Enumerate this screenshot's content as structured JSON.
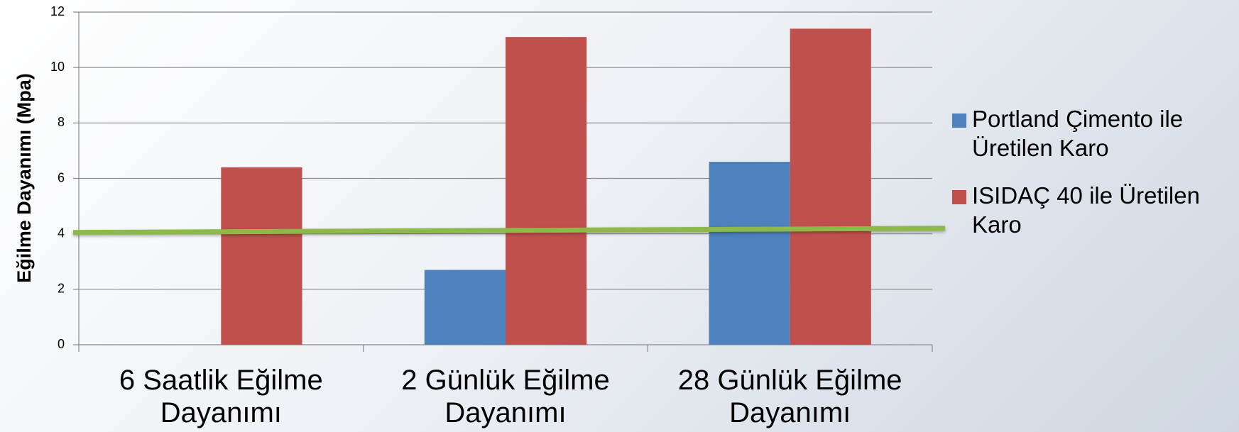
{
  "chart_data": {
    "type": "bar",
    "y_axis_label": "Eğilme Dayanımı (Mpa)",
    "categories": [
      "6 Saatlik Eğilme Dayanımı",
      "2 Günlük Eğilme Dayanımı",
      "28 Günlük Eğilme Dayanımı"
    ],
    "series": [
      {
        "name": "Portland Çimento ile Üretilen Karo",
        "color": "#4f81bd",
        "values": [
          null,
          2.7,
          6.6
        ]
      },
      {
        "name": "ISIDAÇ 40 ile Üretilen Karo",
        "color": "#c0504d",
        "values": [
          6.4,
          11.1,
          11.4
        ]
      }
    ],
    "reference_line": {
      "start": 4.05,
      "end": 4.2,
      "color": "#8db84a"
    },
    "ylim": [
      0,
      12
    ],
    "yticks": [
      0,
      2,
      4,
      6,
      8,
      10,
      12
    ],
    "grid": true,
    "legend": "right"
  }
}
